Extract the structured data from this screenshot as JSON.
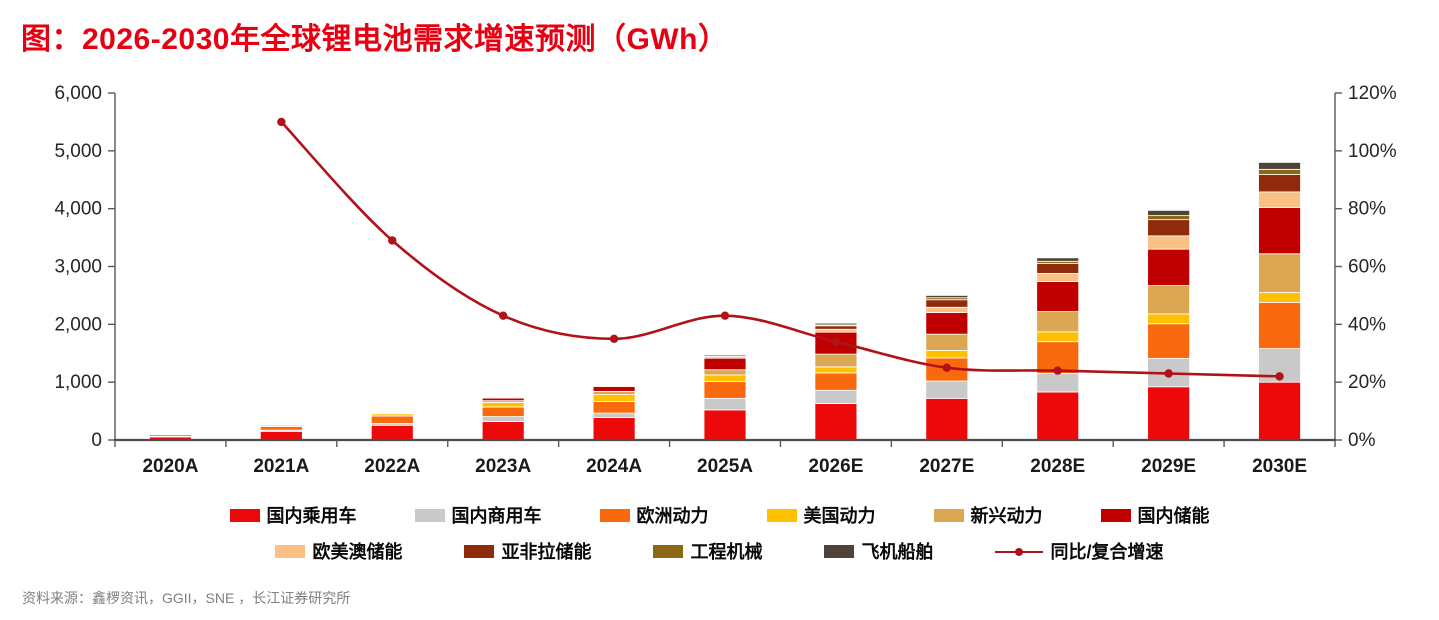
{
  "title": "图：2026-2030年全球锂电池需求增速预测（GWh）",
  "source": "资料来源：鑫椤资讯，GGII，SNE ，长江证券研究所",
  "colors": {
    "title_red": "#e60012",
    "axis_text": "#262626",
    "axis_line": "#595959",
    "source_text": "#808080"
  },
  "chart_data": {
    "type": "bar",
    "subtype": "stacked-bar-with-line",
    "categories": [
      "2020A",
      "2021A",
      "2022A",
      "2023A",
      "2024A",
      "2025A",
      "2026E",
      "2027E",
      "2028E",
      "2029E",
      "2030E"
    ],
    "series": [
      {
        "name": "国内乘用车",
        "color": "#ed0909",
        "values": [
          55,
          150,
          255,
          320,
          390,
          520,
          630,
          720,
          830,
          920,
          1000
        ]
      },
      {
        "name": "国内商用车",
        "color": "#c9c9c9",
        "values": [
          8,
          20,
          30,
          85,
          75,
          200,
          230,
          300,
          320,
          490,
          580
        ]
      },
      {
        "name": "欧洲动力",
        "color": "#f9690d",
        "values": [
          30,
          65,
          130,
          165,
          200,
          290,
          300,
          400,
          550,
          600,
          800
        ]
      },
      {
        "name": "美国动力",
        "color": "#ffc000",
        "values": [
          8,
          25,
          40,
          80,
          120,
          115,
          105,
          130,
          170,
          170,
          170
        ]
      },
      {
        "name": "新兴动力",
        "color": "#dba752",
        "values": [
          3,
          5,
          8,
          30,
          55,
          90,
          220,
          280,
          350,
          490,
          670
        ]
      },
      {
        "name": "国内储能",
        "color": "#c00000",
        "values": [
          8,
          15,
          15,
          45,
          85,
          200,
          380,
          375,
          520,
          630,
          800
        ]
      },
      {
        "name": "欧美澳储能",
        "color": "#fac084",
        "values": [
          3,
          4,
          5,
          15,
          15,
          30,
          50,
          90,
          140,
          230,
          270
        ]
      },
      {
        "name": "亚非拉储能",
        "color": "#8f2a0c",
        "values": [
          3,
          4,
          4,
          10,
          10,
          25,
          60,
          130,
          170,
          280,
          300
        ]
      },
      {
        "name": "工程机械",
        "color": "#8b6914",
        "values": [
          1,
          1,
          1,
          4,
          4,
          8,
          15,
          35,
          40,
          70,
          90
        ]
      },
      {
        "name": "飞机船舶",
        "color": "#4f4238",
        "values": [
          1,
          1,
          2,
          6,
          6,
          12,
          30,
          40,
          60,
          90,
          120
        ]
      }
    ],
    "line": {
      "name": "同比/复合增速",
      "color": "#b01218",
      "values_pct": [
        null,
        110,
        69,
        43,
        35,
        43,
        34,
        25,
        24,
        23,
        22
      ]
    },
    "left_axis": {
      "min": 0,
      "max": 6000,
      "ticks": [
        "0",
        "1,000",
        "2,000",
        "3,000",
        "4,000",
        "5,000",
        "6,000"
      ]
    },
    "right_axis": {
      "min": 0,
      "max": 120,
      "ticks": [
        "0%",
        "20%",
        "40%",
        "60%",
        "80%",
        "100%",
        "120%"
      ]
    },
    "grid": false,
    "legend_position": "bottom"
  }
}
